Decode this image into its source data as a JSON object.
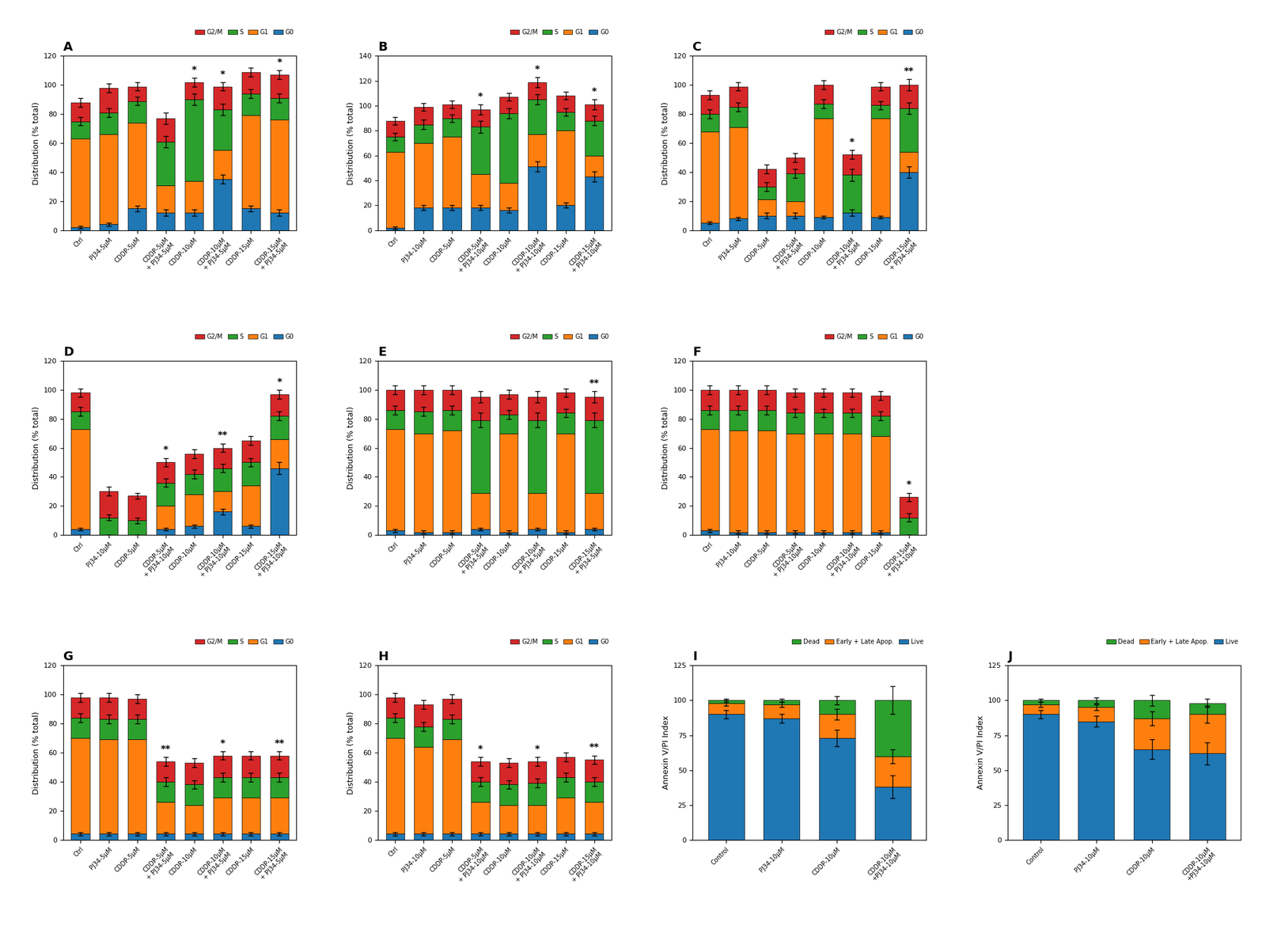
{
  "chart_data": [
    {
      "type": "bar",
      "stacked": true,
      "title": "A",
      "y_label": "Distribution (% total)",
      "categories": [
        "Ctrl",
        "PJ34-5μM",
        "CDDP-5μM",
        "CDDP-5μM\n+ PJ34-5μM",
        "CDDP-10μM",
        "CDDP-10μM\n+ PJ34-5μM",
        "CDDP-15μM",
        "CDDP-15μM\n+ PJ34-5μM"
      ],
      "series": [
        {
          "name": "G0",
          "values": [
            2,
            4,
            15,
            12,
            12,
            35,
            15,
            12
          ],
          "errors": [
            1,
            1,
            2,
            2,
            2,
            3,
            2,
            2
          ]
        },
        {
          "name": "G1",
          "values": [
            61,
            62,
            59,
            19,
            22,
            20,
            64,
            64
          ]
        },
        {
          "name": "S",
          "values": [
            12,
            15,
            15,
            30,
            56,
            28,
            15,
            15
          ],
          "errors": [
            3,
            3,
            3,
            4,
            4,
            4,
            3,
            3
          ]
        },
        {
          "name": "G2/M",
          "values": [
            13,
            17,
            10,
            16,
            12,
            16,
            15,
            16
          ],
          "errors": [
            3,
            3,
            3,
            4,
            3,
            3,
            3,
            3
          ]
        }
      ],
      "annotations": [
        null,
        null,
        null,
        null,
        "*",
        "*",
        null,
        "*"
      ],
      "ylim": [
        0,
        120
      ],
      "yticks": [
        0,
        20,
        40,
        60,
        80,
        100,
        120
      ],
      "legend": "upper right"
    },
    {
      "type": "bar",
      "stacked": true,
      "title": "B",
      "y_label": "Distribution (% total)",
      "categories": [
        "Ctrl",
        "PJ34-10μM",
        "CDDP-5μM",
        "CDDP-5μM\n+ PJ34-10μM",
        "CDDP-10μM",
        "CDDP-10μM\n+ PJ34-10μM",
        "CDDP-15μM",
        "CDDP-15μM\n+ PJ34-10μM"
      ],
      "series": [
        {
          "name": "G0",
          "values": [
            2,
            18,
            18,
            18,
            16,
            51,
            20,
            43
          ],
          "errors": [
            1,
            2,
            2,
            2,
            2,
            4,
            2,
            4
          ]
        },
        {
          "name": "G1",
          "values": [
            61,
            52,
            57,
            27,
            22,
            26,
            60,
            17
          ]
        },
        {
          "name": "S",
          "values": [
            12,
            15,
            15,
            38,
            56,
            28,
            15,
            28
          ],
          "errors": [
            3,
            4,
            3,
            5,
            4,
            4,
            3,
            4
          ]
        },
        {
          "name": "G2/M",
          "values": [
            13,
            14,
            11,
            14,
            13,
            14,
            13,
            13
          ],
          "errors": [
            3,
            3,
            3,
            4,
            3,
            4,
            3,
            4
          ]
        }
      ],
      "annotations": [
        null,
        null,
        null,
        "*",
        null,
        "*",
        null,
        "*"
      ],
      "ylim": [
        0,
        140
      ],
      "yticks": [
        0,
        20,
        40,
        60,
        80,
        100,
        120,
        140
      ],
      "legend": "upper right"
    },
    {
      "type": "bar",
      "stacked": true,
      "title": "C",
      "y_label": "Distribution (% total)",
      "categories": [
        "Ctrl",
        "PJ34-5μM",
        "CDDP-5μM",
        "CDDP-5μM\n+ PJ34-5μM",
        "CDDP-10μM",
        "CDDP-10μM\n+ PJ34-5μM",
        "CDDP-15μM",
        "CDDP-15μM\n+ PJ34-5μM"
      ],
      "series": [
        {
          "name": "G0",
          "values": [
            5,
            8,
            10,
            10,
            9,
            12,
            9,
            40
          ],
          "errors": [
            1,
            1,
            2,
            2,
            1,
            2,
            1,
            4
          ]
        },
        {
          "name": "G1",
          "values": [
            63,
            63,
            11,
            10,
            68,
            0,
            68,
            14
          ]
        },
        {
          "name": "S",
          "values": [
            12,
            14,
            9,
            19,
            10,
            26,
            9,
            30
          ],
          "errors": [
            3,
            3,
            3,
            3,
            3,
            4,
            3,
            4
          ]
        },
        {
          "name": "G2/M",
          "values": [
            13,
            14,
            12,
            11,
            13,
            14,
            13,
            16
          ],
          "errors": [
            3,
            3,
            3,
            3,
            3,
            3,
            3,
            4
          ]
        }
      ],
      "annotations": [
        null,
        null,
        null,
        null,
        null,
        "*",
        null,
        "**"
      ],
      "ylim": [
        0,
        120
      ],
      "yticks": [
        0,
        20,
        40,
        60,
        80,
        100,
        120
      ],
      "legend": "upper right"
    },
    {
      "type": "bar",
      "stacked": true,
      "title": "D",
      "y_label": "Distribution (% total)",
      "categories": [
        "Ctrl",
        "PJ34-10μM",
        "CDDP-5μM",
        "CDDP-5μM\n+ PJ34-10μM",
        "CDDP-10μM",
        "CDDP-10μM\n+ PJ34-10μM",
        "CDDP-15μM",
        "CDDP-15μM\n+ PJ34-10μM"
      ],
      "series": [
        {
          "name": "G0",
          "values": [
            4,
            0,
            0,
            4,
            6,
            16,
            6,
            46
          ],
          "errors": [
            1,
            0,
            0,
            1,
            1,
            2,
            1,
            4
          ]
        },
        {
          "name": "G1",
          "values": [
            69,
            0,
            0,
            16,
            22,
            14,
            28,
            20
          ]
        },
        {
          "name": "S",
          "values": [
            12,
            12,
            10,
            16,
            14,
            16,
            16,
            16
          ],
          "errors": [
            3,
            2,
            2,
            3,
            3,
            3,
            3,
            3
          ]
        },
        {
          "name": "G2/M",
          "values": [
            13,
            18,
            17,
            14,
            14,
            14,
            15,
            15
          ],
          "errors": [
            3,
            3,
            2,
            3,
            3,
            3,
            3,
            3
          ]
        }
      ],
      "annotations": [
        null,
        null,
        null,
        "*",
        null,
        "**",
        null,
        "*"
      ],
      "ylim": [
        0,
        120
      ],
      "yticks": [
        0,
        20,
        40,
        60,
        80,
        100,
        120
      ],
      "legend": "upper right"
    },
    {
      "type": "bar",
      "stacked": true,
      "title": "E",
      "y_label": "Distribution (% total)",
      "categories": [
        "Ctrl",
        "PJ34-5μM",
        "CDDP-5μM",
        "CDDP-5μM\n+ PJ34-5μM",
        "CDDP-10μM",
        "CDDP-10μM\n+ PJ34-5μM",
        "CDDP-15μM",
        "CDDP-15μM\n+ PJ34-5μM"
      ],
      "series": [
        {
          "name": "G0",
          "values": [
            3,
            2,
            2,
            4,
            2,
            4,
            2,
            4
          ],
          "errors": [
            1,
            1,
            1,
            1,
            1,
            1,
            1,
            1
          ]
        },
        {
          "name": "G1",
          "values": [
            70,
            68,
            70,
            25,
            68,
            25,
            68,
            25
          ]
        },
        {
          "name": "S",
          "values": [
            13,
            15,
            14,
            50,
            13,
            50,
            14,
            50
          ],
          "errors": [
            3,
            3,
            3,
            5,
            3,
            5,
            3,
            5
          ]
        },
        {
          "name": "G2/M",
          "values": [
            14,
            15,
            14,
            16,
            14,
            16,
            14,
            16
          ],
          "errors": [
            3,
            3,
            3,
            4,
            3,
            4,
            3,
            4
          ]
        }
      ],
      "annotations": [
        null,
        null,
        null,
        null,
        null,
        null,
        null,
        "**"
      ],
      "ylim": [
        0,
        120
      ],
      "yticks": [
        0,
        20,
        40,
        60,
        80,
        100,
        120
      ],
      "legend": "upper right"
    },
    {
      "type": "bar",
      "stacked": true,
      "title": "F",
      "y_label": "Distribution (% total)",
      "categories": [
        "Ctrl",
        "PJ34-10μM",
        "CDDP-5μM",
        "CDDP-5μM\n+ PJ34-10μM",
        "CDDP-10μM",
        "CDDP-10μM\n+ PJ34-10μM",
        "CDDP-15μM",
        "CDDP-15μM\n+ PJ34-10μM"
      ],
      "series": [
        {
          "name": "G0",
          "values": [
            3,
            2,
            2,
            2,
            2,
            2,
            2,
            0
          ],
          "errors": [
            1,
            1,
            1,
            1,
            1,
            1,
            1,
            0
          ]
        },
        {
          "name": "G1",
          "values": [
            70,
            70,
            70,
            68,
            68,
            68,
            66,
            0
          ]
        },
        {
          "name": "S",
          "values": [
            13,
            14,
            14,
            14,
            14,
            14,
            14,
            12
          ],
          "errors": [
            3,
            3,
            3,
            3,
            3,
            3,
            3,
            3
          ]
        },
        {
          "name": "G2/M",
          "values": [
            14,
            14,
            14,
            14,
            14,
            14,
            14,
            14
          ],
          "errors": [
            3,
            3,
            3,
            3,
            3,
            3,
            3,
            3
          ]
        }
      ],
      "annotations": [
        null,
        null,
        null,
        null,
        null,
        null,
        null,
        "*"
      ],
      "ylim": [
        0,
        120
      ],
      "yticks": [
        0,
        20,
        40,
        60,
        80,
        100,
        120
      ],
      "legend": "upper right"
    },
    {
      "type": "bar",
      "stacked": true,
      "title": "G",
      "y_label": "Distribution (% total)",
      "categories": [
        "Ctrl",
        "PJ34-5μM",
        "CDDP-5μM",
        "CDDP-5μM\n+ PJ34-5μM",
        "CDDP-10μM",
        "CDDP-10μM\n+ PJ34-5μM",
        "CDDP-15μM",
        "CDDP-15μM\n+ PJ34-5μM"
      ],
      "series": [
        {
          "name": "G0",
          "values": [
            4,
            4,
            4,
            4,
            4,
            4,
            4,
            4
          ],
          "errors": [
            1,
            1,
            1,
            1,
            1,
            1,
            1,
            1
          ]
        },
        {
          "name": "G1",
          "values": [
            66,
            65,
            65,
            22,
            20,
            25,
            25,
            25
          ]
        },
        {
          "name": "S",
          "values": [
            14,
            14,
            14,
            14,
            14,
            14,
            14,
            14
          ],
          "errors": [
            3,
            3,
            3,
            3,
            3,
            3,
            3,
            3
          ]
        },
        {
          "name": "G2/M",
          "values": [
            14,
            15,
            14,
            14,
            15,
            15,
            15,
            15
          ],
          "errors": [
            3,
            3,
            3,
            3,
            3,
            3,
            3,
            3
          ]
        }
      ],
      "annotations": [
        null,
        null,
        null,
        "**",
        null,
        "*",
        null,
        "**"
      ],
      "ylim": [
        0,
        120
      ],
      "yticks": [
        0,
        20,
        40,
        60,
        80,
        100,
        120
      ],
      "legend": "upper right"
    },
    {
      "type": "bar",
      "stacked": true,
      "title": "H",
      "y_label": "Distribution (% total)",
      "categories": [
        "Ctrl",
        "PJ34-10μM",
        "CDDP-5μM",
        "CDDP-5μM\n+ PJ34-10μM",
        "CDDP-10μM",
        "CDDP-10μM\n+ PJ34-10μM",
        "CDDP-15μM",
        "CDDP-15μM\n+ PJ34-10μM"
      ],
      "series": [
        {
          "name": "G0",
          "values": [
            4,
            4,
            4,
            4,
            4,
            4,
            4,
            4
          ],
          "errors": [
            1,
            1,
            1,
            1,
            1,
            1,
            1,
            1
          ]
        },
        {
          "name": "G1",
          "values": [
            66,
            60,
            65,
            22,
            20,
            20,
            25,
            22
          ]
        },
        {
          "name": "S",
          "values": [
            14,
            14,
            14,
            14,
            14,
            15,
            14,
            14
          ],
          "errors": [
            3,
            3,
            3,
            3,
            3,
            3,
            3,
            3
          ]
        },
        {
          "name": "G2/M",
          "values": [
            14,
            15,
            14,
            14,
            15,
            15,
            14,
            15
          ],
          "errors": [
            3,
            3,
            3,
            3,
            3,
            3,
            3,
            3
          ]
        }
      ],
      "annotations": [
        null,
        null,
        null,
        "*",
        null,
        "*",
        null,
        "**"
      ],
      "ylim": [
        0,
        120
      ],
      "yticks": [
        0,
        20,
        40,
        60,
        80,
        100,
        120
      ],
      "legend": "upper right"
    },
    {
      "type": "bar",
      "stacked": true,
      "title": "I",
      "y_label": "Annexin V/PI Index",
      "categories": [
        "Control",
        "PJ34-10μM",
        "CDDP-10μM",
        "CDDP-10μM\n+PJ34-10μM"
      ],
      "series": [
        {
          "name": "Live",
          "values": [
            90,
            87,
            73,
            38
          ],
          "errors": [
            3,
            3,
            6,
            8
          ]
        },
        {
          "name": "Early + Late Apop.",
          "values": [
            8,
            10,
            17,
            22
          ],
          "errors": [
            2,
            2,
            4,
            5
          ]
        },
        {
          "name": "Dead",
          "values": [
            2,
            3,
            10,
            40
          ],
          "errors": [
            1,
            1,
            3,
            10
          ]
        }
      ],
      "ylim": [
        0,
        125
      ],
      "yticks": [
        0,
        25,
        50,
        75,
        100,
        125
      ],
      "legend": "upper right"
    },
    {
      "type": "bar",
      "stacked": true,
      "title": "J",
      "y_label": "Annexin V/PI Index",
      "categories": [
        "Control",
        "PJ34-10μM",
        "CDDP-10μM",
        "CDDP-10μM\n+PJ34-10μM"
      ],
      "series": [
        {
          "name": "Live",
          "values": [
            90,
            85,
            65,
            62
          ],
          "errors": [
            3,
            4,
            7,
            8
          ]
        },
        {
          "name": "Early + Late Apop.",
          "values": [
            7,
            10,
            22,
            28
          ],
          "errors": [
            2,
            2,
            5,
            6
          ]
        },
        {
          "name": "Dead",
          "values": [
            3,
            5,
            13,
            8
          ],
          "errors": [
            1,
            2,
            4,
            3
          ]
        }
      ],
      "ylim": [
        0,
        125
      ],
      "yticks": [
        0,
        25,
        50,
        75,
        100,
        125
      ],
      "legend": "upper right"
    }
  ]
}
